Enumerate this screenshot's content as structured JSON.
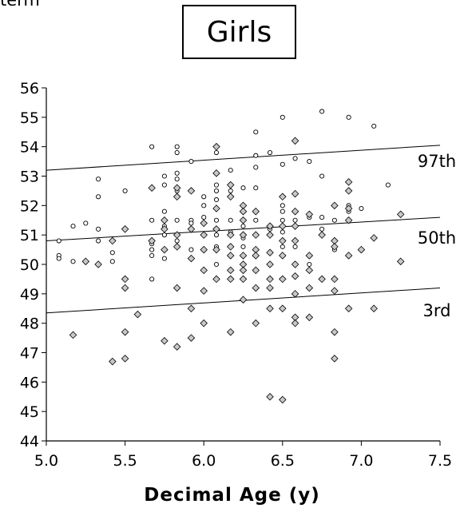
{
  "header": {
    "cut_text": "term"
  },
  "chart_data": {
    "type": "scatter",
    "title": "Girls",
    "xlabel": "Decimal Age (y)",
    "ylabel": "",
    "xlim": [
      5.0,
      7.5
    ],
    "ylim": [
      44,
      56
    ],
    "xticks": [
      "5.0",
      "5.5",
      "6.0",
      "6.5",
      "7.0",
      "7.5"
    ],
    "yticks": [
      "44",
      "45",
      "46",
      "47",
      "48",
      "49",
      "50",
      "51",
      "52",
      "53",
      "54",
      "55",
      "56"
    ],
    "grid": false,
    "series": [
      {
        "marker": "circle",
        "points": [
          [
            5.08,
            50.8
          ],
          [
            5.08,
            50.3
          ],
          [
            5.08,
            50.2
          ],
          [
            5.17,
            51.3
          ],
          [
            5.17,
            50.1
          ],
          [
            5.25,
            51.4
          ],
          [
            5.33,
            52.9
          ],
          [
            5.33,
            52.3
          ],
          [
            5.33,
            51.2
          ],
          [
            5.33,
            50.8
          ],
          [
            5.42,
            50.4
          ],
          [
            5.42,
            50.1
          ],
          [
            5.5,
            52.5
          ],
          [
            5.67,
            54.0
          ],
          [
            5.67,
            51.5
          ],
          [
            5.67,
            50.7
          ],
          [
            5.67,
            50.5
          ],
          [
            5.67,
            50.3
          ],
          [
            5.67,
            49.5
          ],
          [
            5.75,
            53.0
          ],
          [
            5.75,
            52.7
          ],
          [
            5.75,
            51.8
          ],
          [
            5.75,
            51.3
          ],
          [
            5.75,
            51.0
          ],
          [
            5.75,
            50.2
          ],
          [
            5.83,
            54.0
          ],
          [
            5.83,
            53.8
          ],
          [
            5.83,
            53.1
          ],
          [
            5.83,
            52.9
          ],
          [
            5.83,
            52.5
          ],
          [
            5.83,
            51.5
          ],
          [
            5.83,
            50.8
          ],
          [
            5.92,
            53.5
          ],
          [
            5.92,
            51.5
          ],
          [
            5.92,
            51.4
          ],
          [
            5.92,
            50.5
          ],
          [
            6.0,
            52.3
          ],
          [
            6.0,
            52.0
          ],
          [
            6.0,
            51.6
          ],
          [
            6.0,
            51.0
          ],
          [
            6.08,
            53.8
          ],
          [
            6.08,
            52.7
          ],
          [
            6.08,
            52.5
          ],
          [
            6.08,
            52.2
          ],
          [
            6.08,
            51.9
          ],
          [
            6.08,
            51.5
          ],
          [
            6.08,
            51.0
          ],
          [
            6.08,
            50.6
          ],
          [
            6.08,
            50.0
          ],
          [
            6.17,
            53.2
          ],
          [
            6.17,
            52.5
          ],
          [
            6.17,
            51.5
          ],
          [
            6.17,
            51.1
          ],
          [
            6.17,
            50.6
          ],
          [
            6.25,
            52.6
          ],
          [
            6.25,
            51.8
          ],
          [
            6.25,
            51.3
          ],
          [
            6.25,
            50.9
          ],
          [
            6.25,
            50.6
          ],
          [
            6.25,
            50.0
          ],
          [
            6.33,
            54.5
          ],
          [
            6.33,
            53.7
          ],
          [
            6.33,
            53.3
          ],
          [
            6.33,
            52.6
          ],
          [
            6.33,
            51.5
          ],
          [
            6.33,
            50.5
          ],
          [
            6.42,
            53.8
          ],
          [
            6.42,
            51.2
          ],
          [
            6.42,
            51.0
          ],
          [
            6.5,
            55.0
          ],
          [
            6.5,
            53.4
          ],
          [
            6.5,
            52.0
          ],
          [
            6.5,
            51.8
          ],
          [
            6.5,
            51.5
          ],
          [
            6.5,
            51.1
          ],
          [
            6.5,
            50.6
          ],
          [
            6.58,
            53.6
          ],
          [
            6.58,
            51.5
          ],
          [
            6.58,
            50.6
          ],
          [
            6.67,
            53.5
          ],
          [
            6.67,
            51.6
          ],
          [
            6.67,
            50.3
          ],
          [
            6.67,
            50.0
          ],
          [
            6.75,
            55.2
          ],
          [
            6.75,
            53.0
          ],
          [
            6.75,
            51.6
          ],
          [
            6.75,
            51.2
          ],
          [
            6.83,
            51.5
          ],
          [
            6.83,
            50.5
          ],
          [
            6.92,
            55.0
          ],
          [
            6.92,
            52.0
          ],
          [
            6.92,
            51.8
          ],
          [
            6.92,
            51.5
          ],
          [
            7.0,
            51.9
          ],
          [
            7.08,
            54.7
          ],
          [
            7.17,
            52.7
          ]
        ]
      },
      {
        "marker": "diamond",
        "points": [
          [
            5.17,
            47.6
          ],
          [
            5.25,
            50.1
          ],
          [
            5.33,
            50.0
          ],
          [
            5.42,
            50.8
          ],
          [
            5.42,
            46.7
          ],
          [
            5.5,
            51.2
          ],
          [
            5.5,
            49.5
          ],
          [
            5.5,
            49.2
          ],
          [
            5.5,
            47.7
          ],
          [
            5.5,
            46.8
          ],
          [
            5.58,
            48.3
          ],
          [
            5.67,
            52.6
          ],
          [
            5.67,
            50.8
          ],
          [
            5.75,
            51.5
          ],
          [
            5.75,
            51.2
          ],
          [
            5.75,
            50.5
          ],
          [
            5.75,
            47.4
          ],
          [
            5.83,
            52.6
          ],
          [
            5.83,
            52.3
          ],
          [
            5.83,
            51.0
          ],
          [
            5.83,
            50.6
          ],
          [
            5.83,
            49.2
          ],
          [
            5.83,
            47.2
          ],
          [
            5.92,
            52.5
          ],
          [
            5.92,
            51.2
          ],
          [
            5.92,
            50.2
          ],
          [
            5.92,
            48.5
          ],
          [
            5.92,
            47.5
          ],
          [
            6.0,
            51.4
          ],
          [
            6.0,
            51.0
          ],
          [
            6.0,
            50.5
          ],
          [
            6.0,
            49.8
          ],
          [
            6.0,
            49.1
          ],
          [
            6.0,
            48.0
          ],
          [
            6.08,
            54.0
          ],
          [
            6.08,
            53.1
          ],
          [
            6.08,
            51.9
          ],
          [
            6.08,
            51.2
          ],
          [
            6.08,
            50.5
          ],
          [
            6.08,
            49.5
          ],
          [
            6.17,
            52.7
          ],
          [
            6.17,
            52.3
          ],
          [
            6.17,
            51.0
          ],
          [
            6.17,
            50.6
          ],
          [
            6.17,
            50.3
          ],
          [
            6.17,
            49.8
          ],
          [
            6.17,
            49.5
          ],
          [
            6.17,
            47.7
          ],
          [
            6.25,
            52.0
          ],
          [
            6.25,
            51.8
          ],
          [
            6.25,
            51.5
          ],
          [
            6.25,
            51.0
          ],
          [
            6.25,
            50.3
          ],
          [
            6.25,
            50.0
          ],
          [
            6.25,
            49.8
          ],
          [
            6.25,
            49.5
          ],
          [
            6.25,
            48.8
          ],
          [
            6.33,
            51.8
          ],
          [
            6.33,
            51.0
          ],
          [
            6.33,
            50.5
          ],
          [
            6.33,
            50.3
          ],
          [
            6.33,
            49.8
          ],
          [
            6.33,
            49.2
          ],
          [
            6.33,
            48.0
          ],
          [
            6.42,
            51.3
          ],
          [
            6.42,
            51.0
          ],
          [
            6.42,
            50.4
          ],
          [
            6.42,
            50.0
          ],
          [
            6.42,
            49.5
          ],
          [
            6.42,
            49.2
          ],
          [
            6.42,
            48.5
          ],
          [
            6.42,
            45.5
          ],
          [
            6.5,
            52.3
          ],
          [
            6.5,
            51.3
          ],
          [
            6.5,
            50.8
          ],
          [
            6.5,
            50.3
          ],
          [
            6.5,
            49.5
          ],
          [
            6.5,
            48.5
          ],
          [
            6.5,
            45.4
          ],
          [
            6.58,
            54.2
          ],
          [
            6.58,
            52.4
          ],
          [
            6.58,
            51.8
          ],
          [
            6.58,
            51.3
          ],
          [
            6.58,
            50.8
          ],
          [
            6.58,
            50.0
          ],
          [
            6.58,
            49.6
          ],
          [
            6.58,
            49.0
          ],
          [
            6.58,
            48.2
          ],
          [
            6.58,
            48.0
          ],
          [
            6.67,
            51.7
          ],
          [
            6.67,
            50.3
          ],
          [
            6.67,
            49.8
          ],
          [
            6.67,
            49.2
          ],
          [
            6.67,
            48.2
          ],
          [
            6.75,
            51.0
          ],
          [
            6.75,
            49.5
          ],
          [
            6.83,
            52.0
          ],
          [
            6.83,
            50.8
          ],
          [
            6.83,
            50.6
          ],
          [
            6.83,
            49.5
          ],
          [
            6.83,
            49.1
          ],
          [
            6.83,
            47.7
          ],
          [
            6.83,
            46.8
          ],
          [
            6.92,
            52.8
          ],
          [
            6.92,
            52.5
          ],
          [
            6.92,
            51.9
          ],
          [
            6.92,
            51.5
          ],
          [
            6.92,
            50.3
          ],
          [
            6.92,
            48.5
          ],
          [
            7.0,
            50.5
          ],
          [
            7.08,
            50.9
          ],
          [
            7.08,
            48.5
          ],
          [
            7.25,
            51.7
          ],
          [
            7.25,
            50.1
          ]
        ]
      }
    ],
    "reference_lines": [
      {
        "label": "97th",
        "y_start": 53.2,
        "y_end": 54.05
      },
      {
        "label": "50th",
        "y_start": 50.8,
        "y_end": 51.6
      },
      {
        "label": "3rd",
        "y_start": 48.35,
        "y_end": 49.2
      }
    ]
  }
}
